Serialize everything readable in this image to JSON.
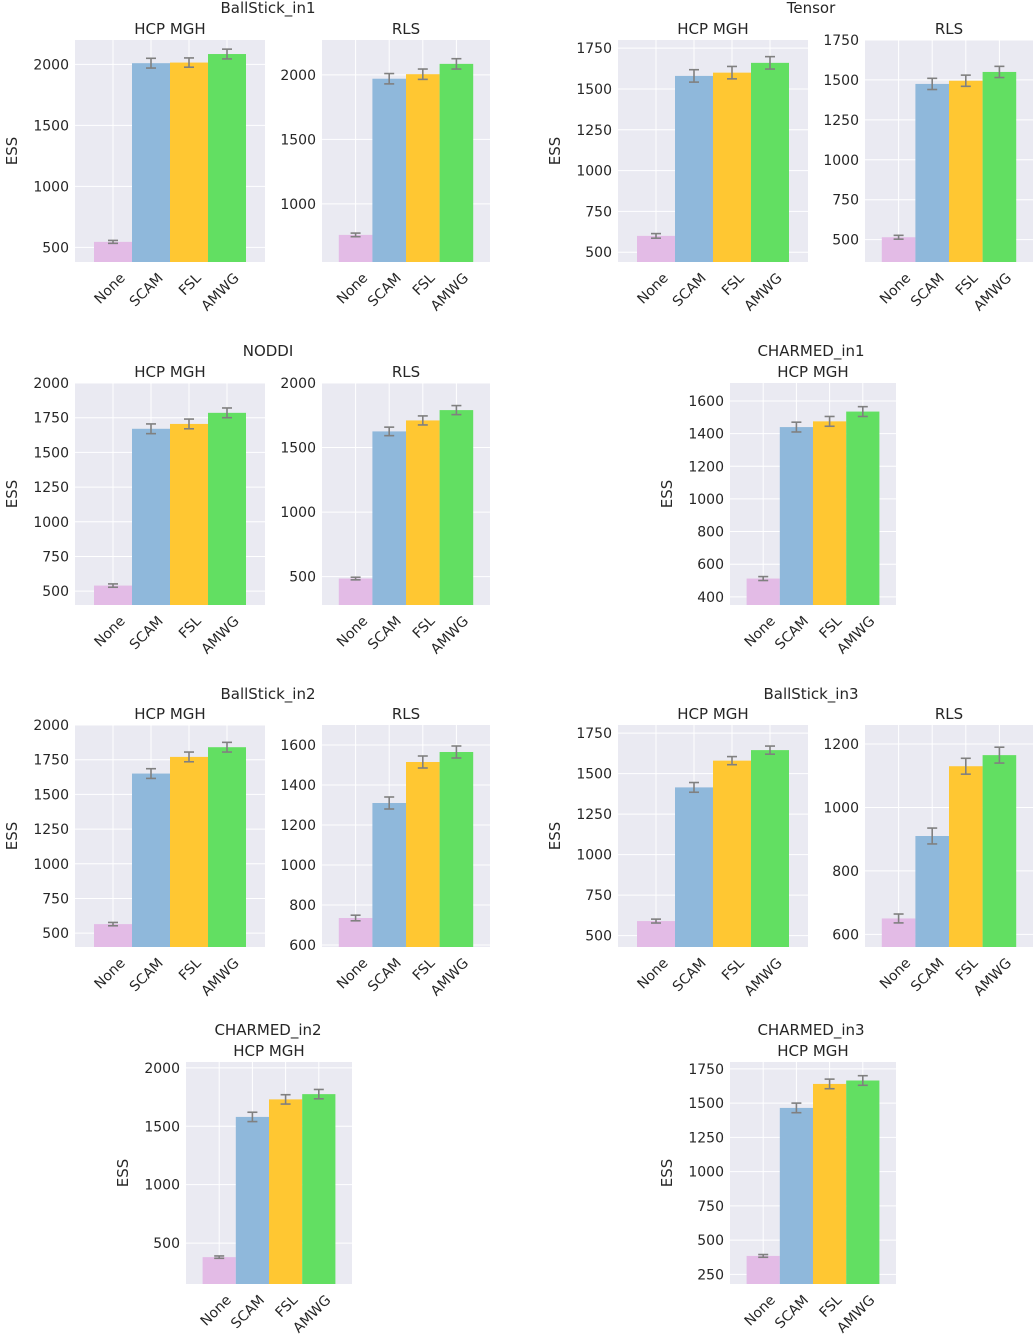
{
  "figure": {
    "ylabel": "ESS"
  },
  "groups": [
    {
      "id": "ballstick-in1",
      "title": "BallStick_in1"
    },
    {
      "id": "tensor",
      "title": "Tensor"
    },
    {
      "id": "noddi",
      "title": "NODDI"
    },
    {
      "id": "charmed-in1",
      "title": "CHARMED_in1"
    },
    {
      "id": "ballstick-in2",
      "title": "BallStick_in2"
    },
    {
      "id": "ballstick-in3",
      "title": "BallStick_in3"
    },
    {
      "id": "charmed-in2",
      "title": "CHARMED_in2"
    },
    {
      "id": "charmed-in3",
      "title": "CHARMED_in3"
    }
  ],
  "colors": {
    "None": "#e3bbe6",
    "SCAM": "#8fb8db",
    "FSL": "#ffc732",
    "AMWG": "#62df62",
    "errorbar": "#808080",
    "panel_bg": "#eaeaf2",
    "grid": "#ffffff"
  },
  "chart_data": [
    {
      "group": "BallStick_in1",
      "title": "HCP MGH",
      "type": "bar",
      "ylabel": "ESS",
      "categories": [
        "None",
        "SCAM",
        "FSL",
        "AMWG"
      ],
      "values": [
        545,
        2010,
        2015,
        2085
      ],
      "errors": [
        12,
        40,
        38,
        40
      ],
      "ylim": [
        380,
        2200
      ],
      "yticks": [
        500,
        1000,
        1500,
        2000
      ]
    },
    {
      "group": "BallStick_in1",
      "title": "RLS",
      "type": "bar",
      "ylabel": "",
      "categories": [
        "None",
        "SCAM",
        "FSL",
        "AMWG"
      ],
      "values": [
        760,
        1970,
        2005,
        2085
      ],
      "errors": [
        14,
        40,
        40,
        40
      ],
      "ylim": [
        550,
        2270
      ],
      "yticks": [
        1000,
        1500,
        2000
      ]
    },
    {
      "group": "Tensor",
      "title": "HCP MGH",
      "type": "bar",
      "ylabel": "ESS",
      "categories": [
        "None",
        "SCAM",
        "FSL",
        "AMWG"
      ],
      "values": [
        600,
        1580,
        1600,
        1660
      ],
      "errors": [
        14,
        38,
        38,
        38
      ],
      "ylim": [
        440,
        1800
      ],
      "yticks": [
        500,
        750,
        1000,
        1250,
        1500,
        1750
      ]
    },
    {
      "group": "Tensor",
      "title": "RLS",
      "type": "bar",
      "ylabel": "",
      "categories": [
        "None",
        "SCAM",
        "FSL",
        "AMWG"
      ],
      "values": [
        515,
        1475,
        1495,
        1550
      ],
      "errors": [
        12,
        35,
        35,
        35
      ],
      "ylim": [
        360,
        1750
      ],
      "yticks": [
        500,
        750,
        1000,
        1250,
        1500,
        1750
      ]
    },
    {
      "group": "NODDI",
      "title": "HCP MGH",
      "type": "bar",
      "ylabel": "ESS",
      "categories": [
        "None",
        "SCAM",
        "FSL",
        "AMWG"
      ],
      "values": [
        540,
        1670,
        1705,
        1785
      ],
      "errors": [
        12,
        35,
        35,
        35
      ],
      "ylim": [
        400,
        2000
      ],
      "yticks": [
        500,
        750,
        1000,
        1250,
        1500,
        1750,
        2000
      ]
    },
    {
      "group": "NODDI",
      "title": "RLS",
      "type": "bar",
      "ylabel": "",
      "categories": [
        "None",
        "SCAM",
        "FSL",
        "AMWG"
      ],
      "values": [
        485,
        1625,
        1710,
        1790
      ],
      "errors": [
        10,
        33,
        35,
        35
      ],
      "ylim": [
        280,
        2000
      ],
      "yticks": [
        500,
        1000,
        1500,
        2000
      ]
    },
    {
      "group": "CHARMED_in1",
      "title": "HCP MGH",
      "type": "bar",
      "ylabel": "ESS",
      "categories": [
        "None",
        "SCAM",
        "FSL",
        "AMWG"
      ],
      "values": [
        512,
        1440,
        1475,
        1535
      ],
      "errors": [
        12,
        30,
        30,
        30
      ],
      "ylim": [
        350,
        1710
      ],
      "yticks": [
        400,
        600,
        800,
        1000,
        1200,
        1400,
        1600
      ]
    },
    {
      "group": "BallStick_in2",
      "title": "HCP MGH",
      "type": "bar",
      "ylabel": "ESS",
      "categories": [
        "None",
        "SCAM",
        "FSL",
        "AMWG"
      ],
      "values": [
        565,
        1650,
        1770,
        1840
      ],
      "errors": [
        12,
        35,
        35,
        35
      ],
      "ylim": [
        400,
        2000
      ],
      "yticks": [
        500,
        750,
        1000,
        1250,
        1500,
        1750,
        2000
      ]
    },
    {
      "group": "BallStick_in2",
      "title": "RLS",
      "type": "bar",
      "ylabel": "",
      "categories": [
        "None",
        "SCAM",
        "FSL",
        "AMWG"
      ],
      "values": [
        735,
        1310,
        1515,
        1565
      ],
      "errors": [
        14,
        30,
        30,
        30
      ],
      "ylim": [
        590,
        1700
      ],
      "yticks": [
        600,
        800,
        1000,
        1200,
        1400,
        1600
      ]
    },
    {
      "group": "BallStick_in3",
      "title": "HCP MGH",
      "type": "bar",
      "ylabel": "ESS",
      "categories": [
        "None",
        "SCAM",
        "FSL",
        "AMWG"
      ],
      "values": [
        590,
        1415,
        1580,
        1645
      ],
      "errors": [
        12,
        30,
        25,
        25
      ],
      "ylim": [
        430,
        1800
      ],
      "yticks": [
        500,
        750,
        1000,
        1250,
        1500,
        1750
      ]
    },
    {
      "group": "BallStick_in3",
      "title": "RLS",
      "type": "bar",
      "ylabel": "",
      "categories": [
        "None",
        "SCAM",
        "FSL",
        "AMWG"
      ],
      "values": [
        650,
        910,
        1130,
        1165
      ],
      "errors": [
        14,
        25,
        25,
        25
      ],
      "ylim": [
        560,
        1260
      ],
      "yticks": [
        600,
        800,
        1000,
        1200
      ]
    },
    {
      "group": "CHARMED_in2",
      "title": "HCP MGH",
      "type": "bar",
      "ylabel": "ESS",
      "categories": [
        "None",
        "SCAM",
        "FSL",
        "AMWG"
      ],
      "values": [
        380,
        1580,
        1730,
        1775
      ],
      "errors": [
        10,
        40,
        40,
        40
      ],
      "ylim": [
        150,
        2050
      ],
      "yticks": [
        500,
        1000,
        1500,
        2000
      ]
    },
    {
      "group": "CHARMED_in3",
      "title": "HCP MGH",
      "type": "bar",
      "ylabel": "ESS",
      "categories": [
        "None",
        "SCAM",
        "FSL",
        "AMWG"
      ],
      "values": [
        385,
        1465,
        1640,
        1665
      ],
      "errors": [
        10,
        35,
        35,
        35
      ],
      "ylim": [
        180,
        1800
      ],
      "yticks": [
        250,
        500,
        750,
        1000,
        1250,
        1500,
        1750
      ]
    }
  ]
}
